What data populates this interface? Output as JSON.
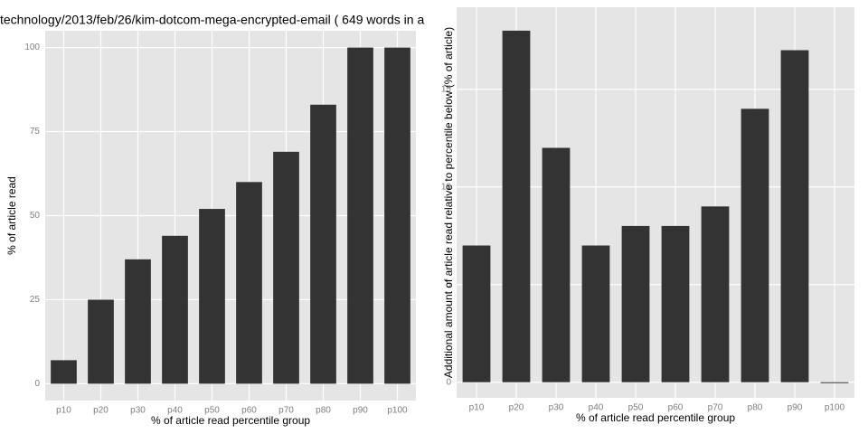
{
  "chart_data": [
    {
      "type": "bar",
      "title": "technology/2013/feb/26/kim-dotcom-mega-encrypted-email ( 649 words in a",
      "x_label": "% of article read percentile group",
      "y_label": "% of article read",
      "categories": [
        "p10",
        "p20",
        "p30",
        "p40",
        "p50",
        "p60",
        "p70",
        "p80",
        "p90",
        "p100"
      ],
      "values": [
        7,
        25,
        37,
        44,
        52,
        60,
        69,
        83,
        100,
        100
      ],
      "color": "#333333",
      "ylim": [
        -5,
        105
      ],
      "yticks": [
        0,
        25,
        50,
        75,
        100
      ],
      "grid": true
    },
    {
      "type": "bar",
      "x_label": "% of article read percentile group",
      "y_label": "Additional amount of article read relative to percentile below (% of article)",
      "categories": [
        "p10",
        "p20",
        "p30",
        "p40",
        "p50",
        "p60",
        "p70",
        "p80",
        "p90",
        "p100"
      ],
      "values": [
        7,
        18,
        12,
        7,
        8,
        8,
        9,
        14,
        17,
        0
      ],
      "color": "#333333",
      "ylim": [
        -0.8,
        19.2
      ],
      "yticks": [
        0,
        5,
        10,
        15
      ],
      "grid": true
    }
  ]
}
